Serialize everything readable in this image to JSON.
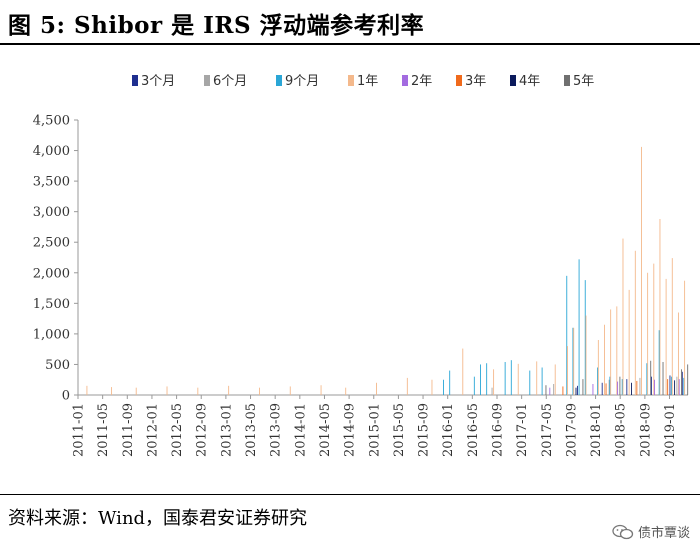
{
  "header": {
    "title": "图 5:  Shibor 是 IRS 浮动端参考利率"
  },
  "footer": {
    "source": "资料来源：Wind，国泰君安证券研究",
    "watermark": "债市覃谈",
    "watermark_icon": "wechat-icon"
  },
  "chart_data": {
    "type": "bar",
    "title": "",
    "xlabel": "",
    "ylabel": "",
    "ylim": [
      0,
      4500
    ],
    "yticks": [
      0,
      500,
      1000,
      1500,
      2000,
      2500,
      3000,
      3500,
      4000,
      4500
    ],
    "ytick_labels": [
      "0",
      "500",
      "1,000",
      "1,500",
      "2,000",
      "2,500",
      "3,000",
      "3,500",
      "4,000",
      "4,500"
    ],
    "xtick_labels": [
      "2011-01",
      "2011-05",
      "2011-09",
      "2012-01",
      "2012-05",
      "2012-09",
      "2013-01",
      "2013-05",
      "2013-09",
      "2014-01",
      "2014-05",
      "2014-09",
      "2015-01",
      "2015-05",
      "2015-09",
      "2016-01",
      "2016-05",
      "2016-09",
      "2017-01",
      "2017-05",
      "2017-09",
      "2018-01",
      "2018-05",
      "2018-09",
      "2019-01"
    ],
    "legend_position": "top",
    "grid": false,
    "x_start": "2011-01",
    "x_end": "2019-03",
    "series": [
      {
        "name": "3个月",
        "color": "#1f2f8f",
        "points": [
          [
            "2017-10",
            150
          ],
          [
            "2018-02",
            200
          ],
          [
            "2018-06",
            260
          ],
          [
            "2018-10",
            300
          ],
          [
            "2019-01",
            320
          ],
          [
            "2019-03",
            380
          ]
        ]
      },
      {
        "name": "6个月",
        "color": "#a6a6a6",
        "points": [
          [
            "2016-08",
            120
          ],
          [
            "2017-06",
            180
          ],
          [
            "2018-03",
            250
          ],
          [
            "2018-08",
            280
          ],
          [
            "2019-02",
            300
          ]
        ]
      },
      {
        "name": "9个月",
        "color": "#2aa6d6",
        "points": [
          [
            "2015-12",
            250
          ],
          [
            "2016-01",
            400
          ],
          [
            "2016-05",
            300
          ],
          [
            "2016-06",
            500
          ],
          [
            "2016-07",
            520
          ],
          [
            "2016-10",
            540
          ],
          [
            "2016-11",
            570
          ],
          [
            "2017-02",
            400
          ],
          [
            "2017-04",
            450
          ],
          [
            "2017-08",
            1950
          ],
          [
            "2017-09",
            1100
          ],
          [
            "2017-10",
            2220
          ],
          [
            "2017-11",
            1880
          ],
          [
            "2018-01",
            450
          ],
          [
            "2018-03",
            300
          ],
          [
            "2018-05",
            260
          ],
          [
            "2018-09",
            520
          ],
          [
            "2018-11",
            1060
          ],
          [
            "2019-01",
            300
          ],
          [
            "2019-03",
            280
          ]
        ]
      },
      {
        "name": "1年",
        "color": "#f4b98c",
        "points": [
          [
            "2011-02",
            150
          ],
          [
            "2011-06",
            130
          ],
          [
            "2011-10",
            120
          ],
          [
            "2012-03",
            140
          ],
          [
            "2012-08",
            120
          ],
          [
            "2013-01",
            150
          ],
          [
            "2013-06",
            120
          ],
          [
            "2013-11",
            140
          ],
          [
            "2014-04",
            160
          ],
          [
            "2014-08",
            120
          ],
          [
            "2015-01",
            200
          ],
          [
            "2015-06",
            280
          ],
          [
            "2015-10",
            250
          ],
          [
            "2016-03",
            760
          ],
          [
            "2016-08",
            420
          ],
          [
            "2016-12",
            510
          ],
          [
            "2017-03",
            550
          ],
          [
            "2017-06",
            500
          ],
          [
            "2017-08",
            800
          ],
          [
            "2017-09",
            1100
          ],
          [
            "2017-11",
            1300
          ],
          [
            "2018-01",
            900
          ],
          [
            "2018-02",
            1150
          ],
          [
            "2018-03",
            1400
          ],
          [
            "2018-04",
            1450
          ],
          [
            "2018-05",
            2560
          ],
          [
            "2018-06",
            1720
          ],
          [
            "2018-07",
            2360
          ],
          [
            "2018-08",
            4060
          ],
          [
            "2018-09",
            2000
          ],
          [
            "2018-10",
            2150
          ],
          [
            "2018-11",
            2880
          ],
          [
            "2018-12",
            1900
          ],
          [
            "2019-01",
            2240
          ],
          [
            "2019-02",
            1350
          ],
          [
            "2019-03",
            1870
          ]
        ]
      },
      {
        "name": "2年",
        "color": "#a36be0",
        "points": [
          [
            "2017-05",
            120
          ],
          [
            "2017-12",
            180
          ],
          [
            "2018-04",
            220
          ],
          [
            "2018-10",
            250
          ],
          [
            "2019-02",
            260
          ]
        ]
      },
      {
        "name": "3年",
        "color": "#f06a1c",
        "points": [
          [
            "2017-07",
            140
          ],
          [
            "2018-02",
            190
          ],
          [
            "2018-07",
            230
          ],
          [
            "2018-12",
            260
          ]
        ]
      },
      {
        "name": "4年",
        "color": "#0b1a5c",
        "points": [
          [
            "2017-09",
            120
          ],
          [
            "2018-06",
            200
          ],
          [
            "2019-01",
            240
          ]
        ]
      },
      {
        "name": "5年",
        "color": "#707070",
        "points": [
          [
            "2017-04",
            160
          ],
          [
            "2017-10",
            260
          ],
          [
            "2018-04",
            300
          ],
          [
            "2018-09",
            560
          ],
          [
            "2018-11",
            540
          ],
          [
            "2019-02",
            420
          ],
          [
            "2019-03",
            500
          ]
        ]
      }
    ]
  }
}
